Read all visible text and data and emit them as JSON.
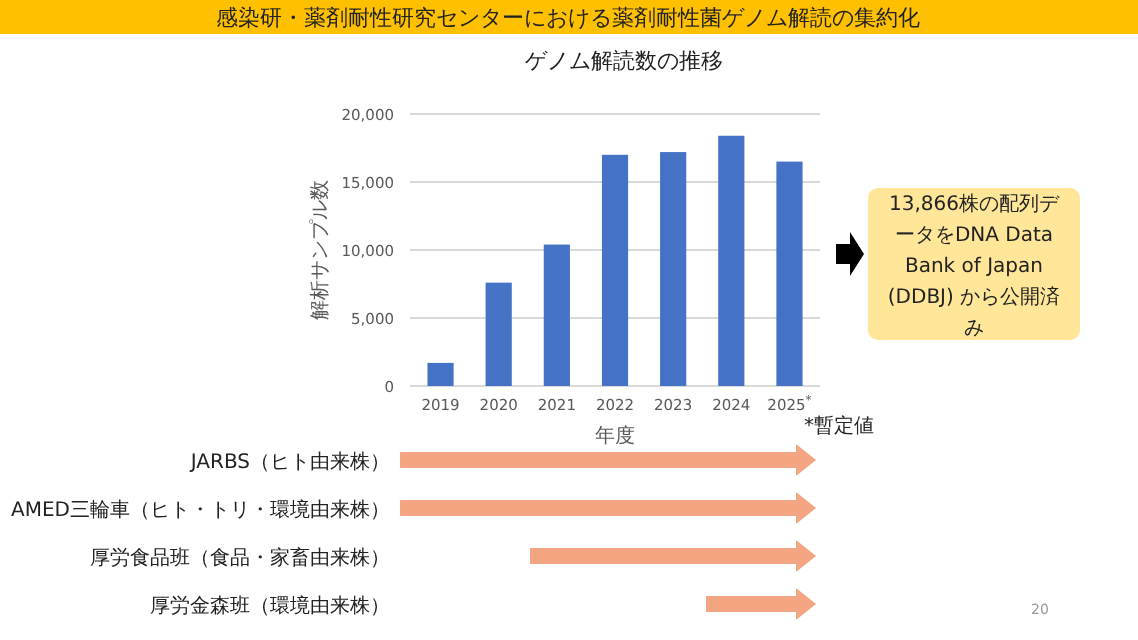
{
  "chart_data": {
    "type": "bar",
    "title": "感染研・薬剤耐性研究センターにおける薬剤耐性菌ゲノム解読の集約化",
    "subtitle": "ゲノム解読数の推移",
    "xlabel": "年度",
    "ylabel": "解析サンプル数",
    "categories": [
      "2019",
      "2020",
      "2021",
      "2022",
      "2023",
      "2024",
      "2025$^{*}$"
    ],
    "values": [
      1700,
      7600,
      10400,
      17000,
      17200,
      18400,
      16500
    ],
    "color": "#4472c4",
    "ylim": [
      0,
      20000
    ],
    "yticks": [
      {
        "value": 0,
        "label": "0"
      },
      {
        "value": 5000,
        "label": "5,000"
      },
      {
        "value": 10000,
        "label": "10,000"
      },
      {
        "value": 15000,
        "label": "15,000"
      },
      {
        "value": 20000,
        "label": "20,000"
      }
    ],
    "grid": "y",
    "annotations": [
      "13,866株の配列データをDNA Data Bank of Japan (DDBJ) から公開済み",
      "*暫定値",
      "JARBS（ヒト由来株）",
      "AMED三輪車（ヒト・トリ・環境由来株）",
      "厚労食品班（食品・家畜由来株）",
      "厚労金森班（環境由来株）",
      "20"
    ]
  }
}
